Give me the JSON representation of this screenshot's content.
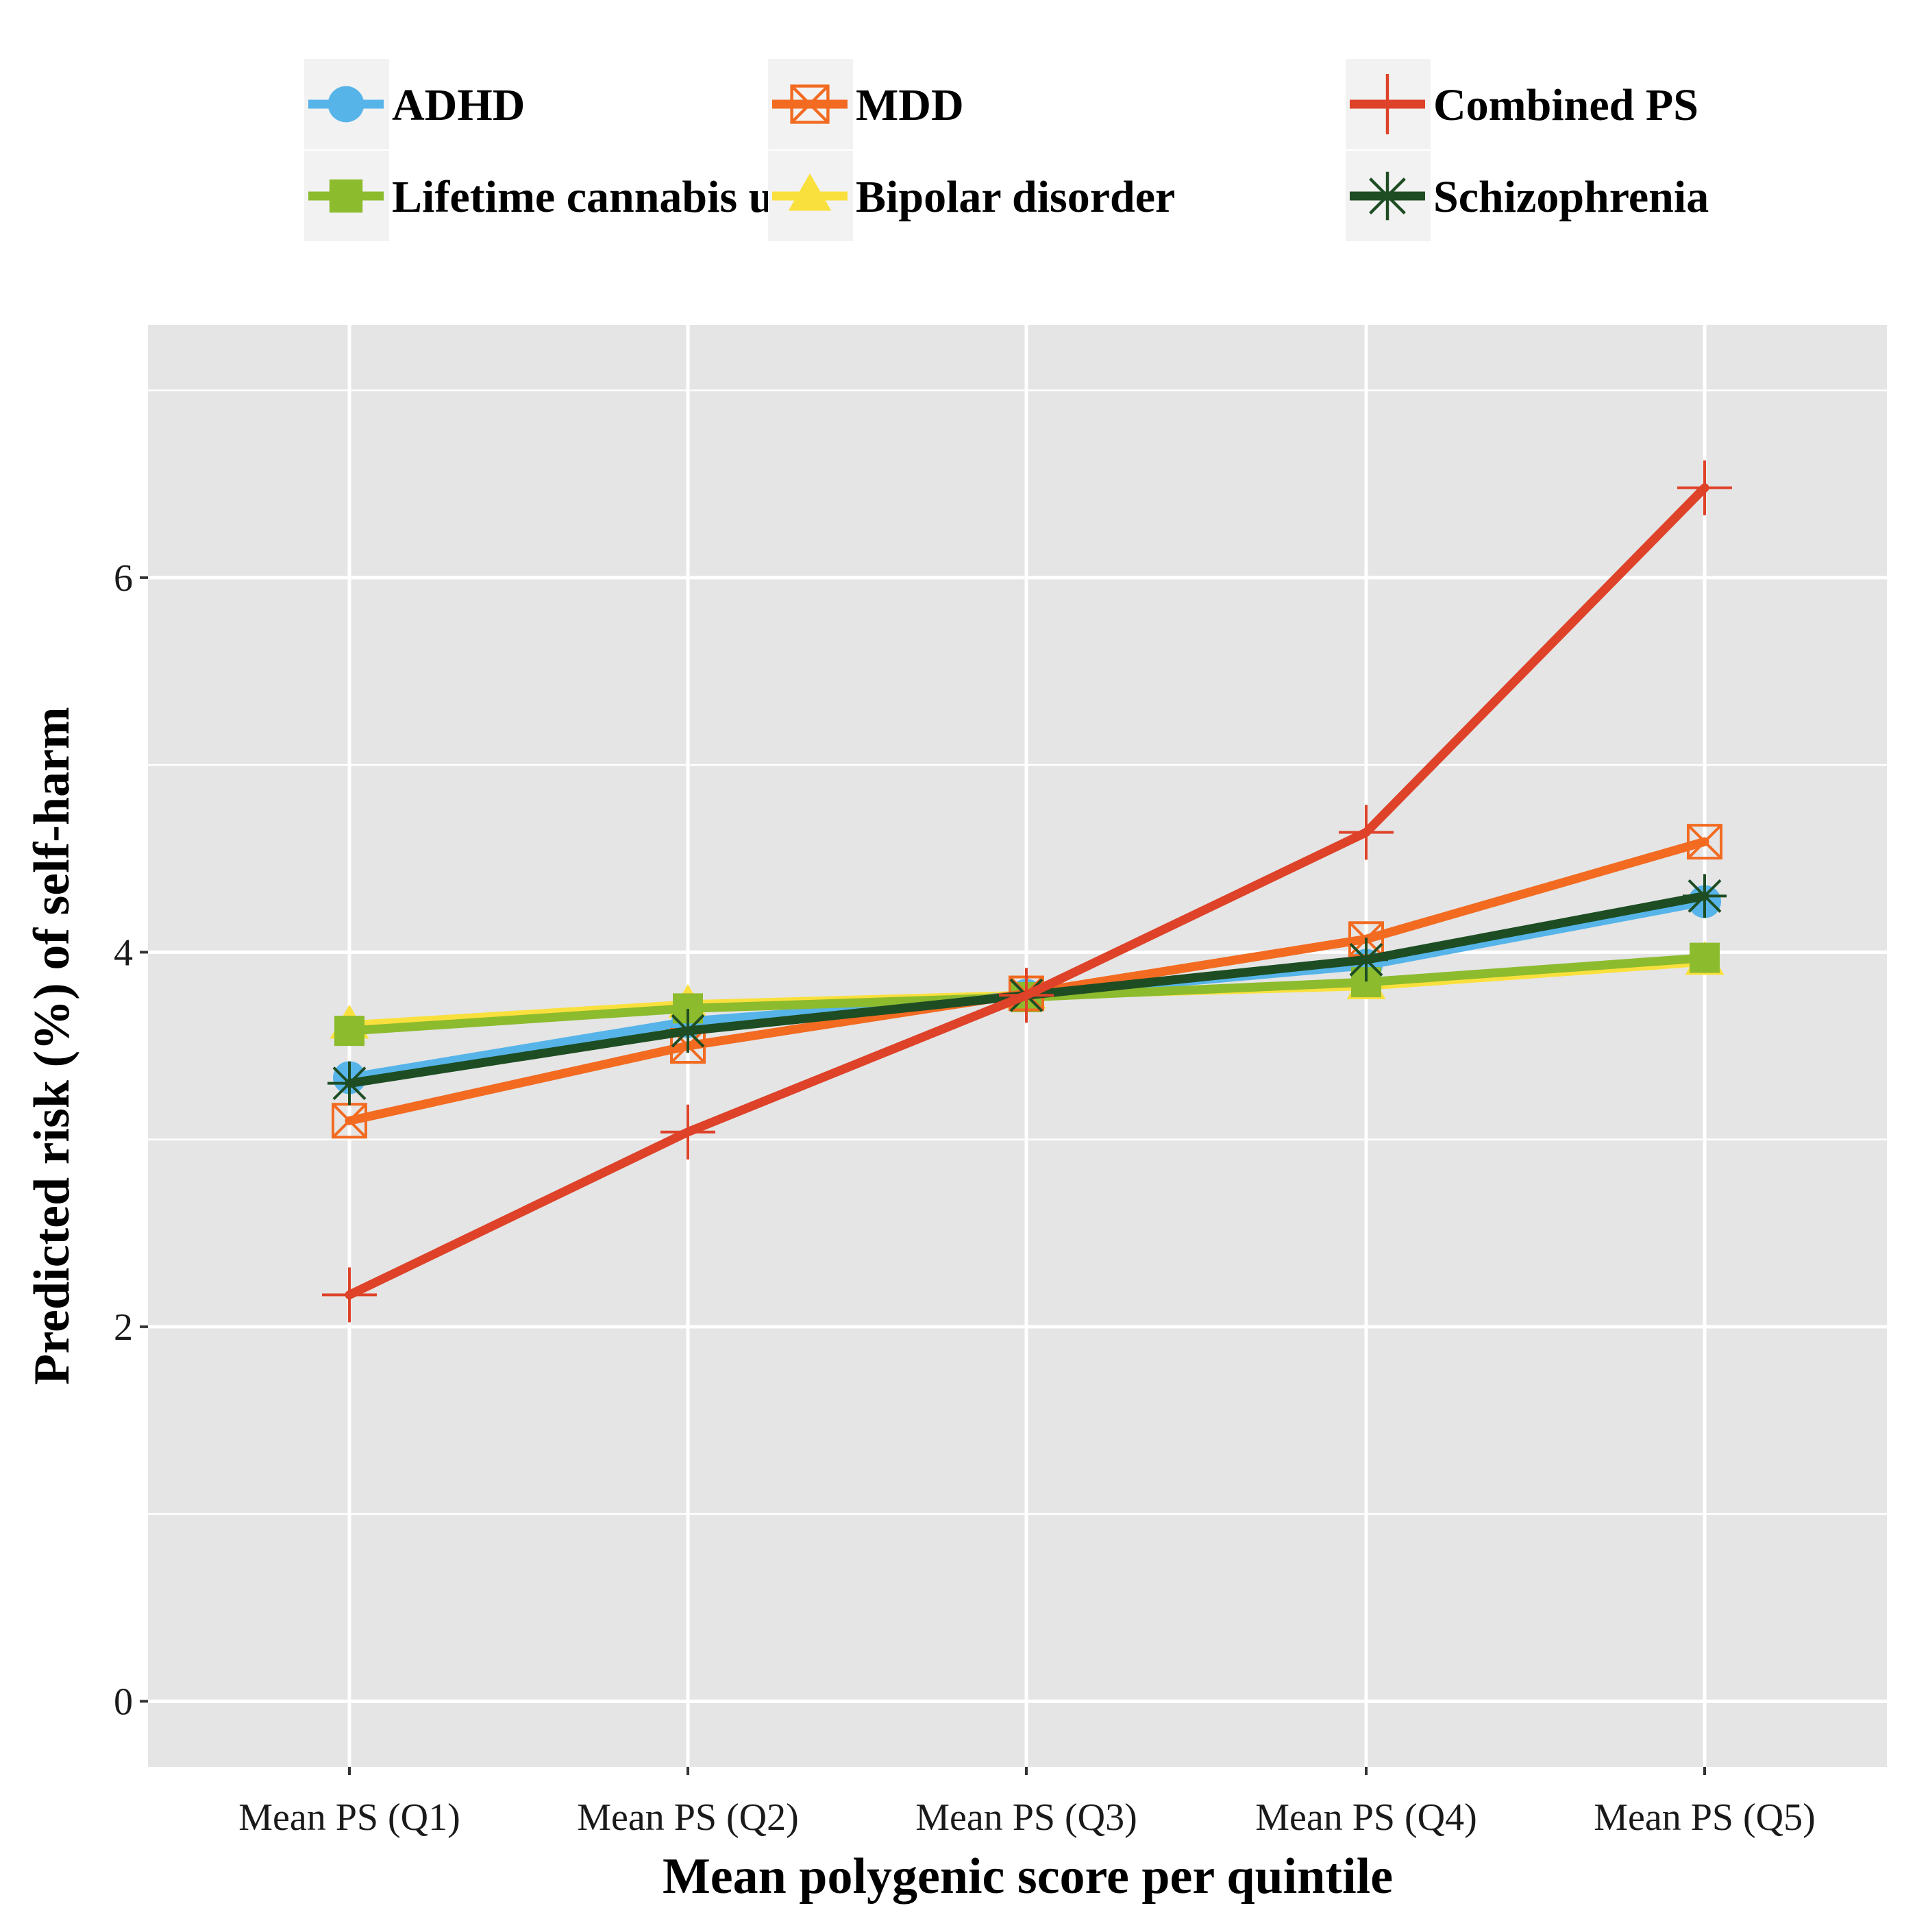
{
  "chart_data": {
    "type": "line",
    "xlabel": "Mean polygenic score per quintile",
    "ylabel": "Predicted risk (%) of self-harm",
    "categories": [
      "Mean PS (Q1)",
      "Mean PS (Q2)",
      "Mean PS (Q3)",
      "Mean PS (Q4)",
      "Mean PS (Q5)"
    ],
    "ylim": [
      -0.35,
      7.35
    ],
    "yticks": [
      0,
      2,
      4,
      6
    ],
    "grid": true,
    "legend_position": "top",
    "series": [
      {
        "name": "ADHD",
        "color": "#56B4E9",
        "marker": "circle",
        "values": [
          3.33,
          3.63,
          3.77,
          3.93,
          4.27
        ]
      },
      {
        "name": "Lifetime cannabis use",
        "color": "#8DBB2E",
        "marker": "square",
        "values": [
          3.58,
          3.7,
          3.76,
          3.84,
          3.97
        ]
      },
      {
        "name": "MDD",
        "color": "#F26B21",
        "marker": "boxed-x",
        "values": [
          3.1,
          3.5,
          3.78,
          4.07,
          4.59
        ]
      },
      {
        "name": "Bipolar disorder",
        "color": "#FAE03C",
        "marker": "triangle",
        "values": [
          3.61,
          3.72,
          3.77,
          3.82,
          3.95
        ]
      },
      {
        "name": "Combined PS",
        "color": "#DE4229",
        "marker": "plus",
        "values": [
          2.17,
          3.04,
          3.77,
          4.64,
          6.48
        ]
      },
      {
        "name": "Schizophrenia",
        "color": "#1E4D23",
        "marker": "asterisk",
        "values": [
          3.3,
          3.58,
          3.77,
          3.96,
          4.3
        ]
      }
    ],
    "draw_order": [
      "Bipolar disorder",
      "ADHD",
      "Lifetime cannabis use",
      "MDD",
      "Schizophrenia",
      "Combined PS"
    ]
  }
}
